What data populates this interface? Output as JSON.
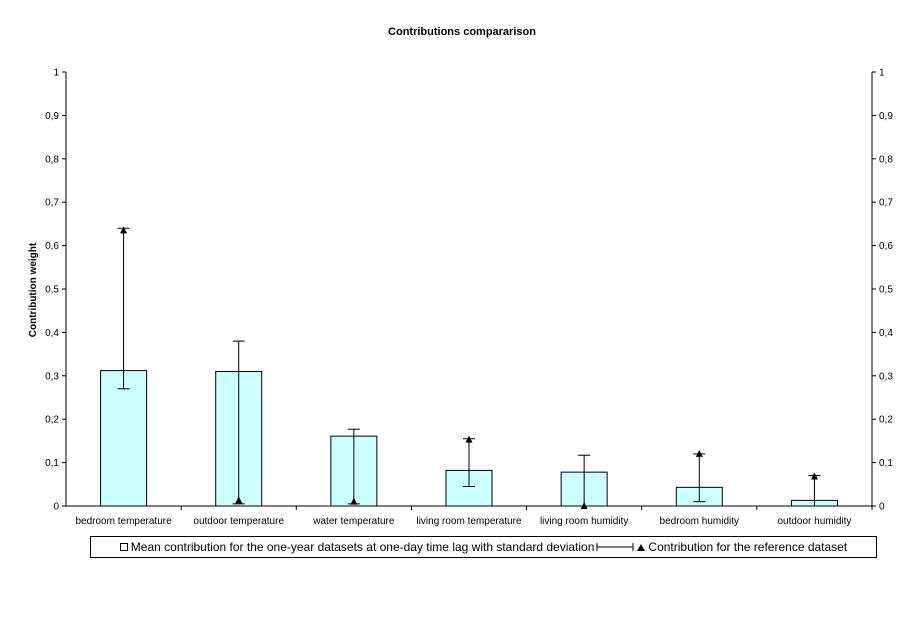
{
  "chart_data": {
    "type": "bar",
    "title": "Contributions compararison",
    "ylabel": "Contribution weight",
    "xlabel": "",
    "ylim": [
      0,
      1
    ],
    "y_ticks": [
      "0",
      "0,1",
      "0,2",
      "0,3",
      "0,4",
      "0,5",
      "0,6",
      "0,7",
      "0,8",
      "0,9",
      "1"
    ],
    "y_tick_values": [
      0,
      0.1,
      0.2,
      0.3,
      0.4,
      0.5,
      0.6,
      0.7,
      0.8,
      0.9,
      1
    ],
    "secondary_y_axis": true,
    "grid": false,
    "categories": [
      "bedroom temperature",
      "outdoor temperature",
      "water temperature",
      "living room temperature",
      "living room humidity",
      "bedroom humidity",
      "outdoor humidity"
    ],
    "series": [
      {
        "name": "Mean contribution for the one-year datasets at one-day time lag with standard deviation",
        "values": [
          0.312,
          0.31,
          0.161,
          0.082,
          0.078,
          0.043,
          0.013
        ],
        "error_low": [
          0.27,
          0.005,
          0.005,
          0.045,
          0.0,
          0.01,
          0.0
        ],
        "error_high": [
          0.64,
          0.38,
          0.177,
          0.155,
          0.117,
          0.12,
          0.07
        ],
        "color": "#ccffff"
      },
      {
        "name": "Contribution for the reference dataset",
        "values": [
          0.635,
          0.013,
          0.01,
          0.153,
          0.0,
          0.12,
          0.068
        ],
        "marker": "triangle"
      }
    ],
    "legend_position": "bottom"
  },
  "legend": {
    "mean_label": "Mean contribution for the one-year datasets at one-day time lag with standard deviation",
    "reference_label": "Contribution for the reference dataset"
  }
}
